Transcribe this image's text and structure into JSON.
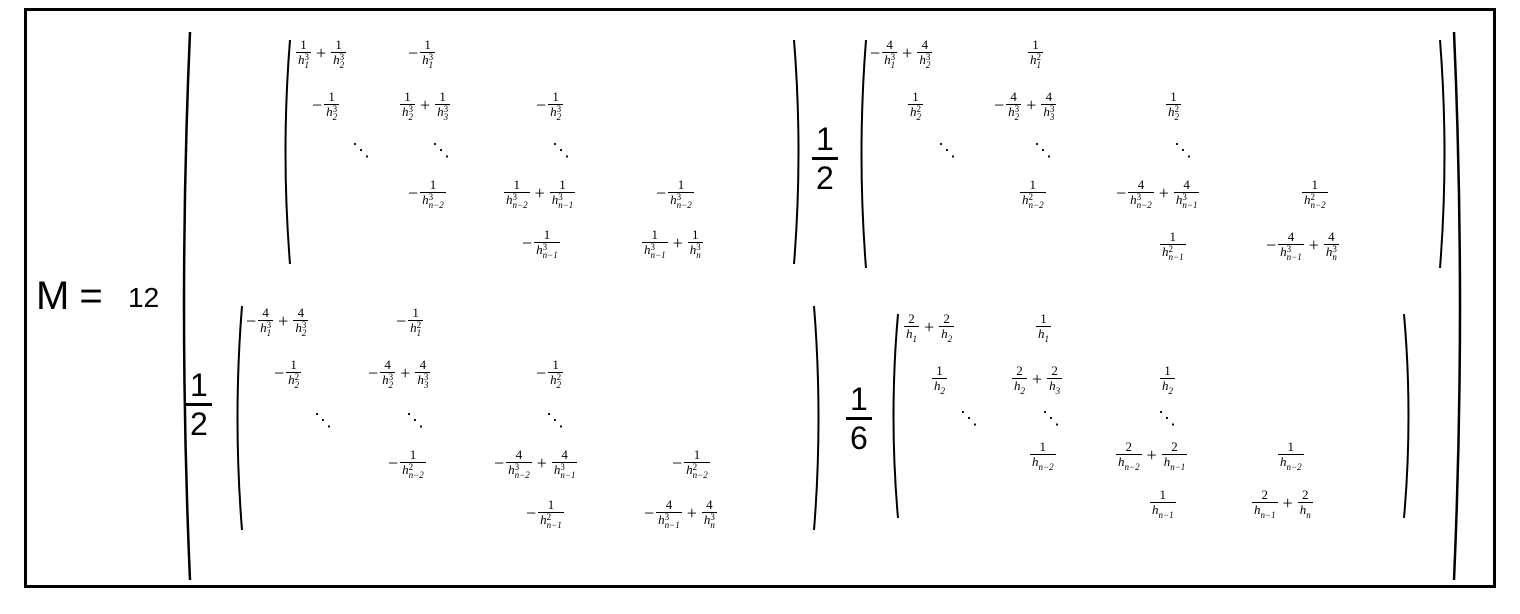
{
  "equation": {
    "lhs": "M",
    "equals": "=",
    "coefficient": "12"
  },
  "blocks": {
    "top_left": {
      "factor": null,
      "rows": [
        [
          {
            "expr": [
              {
                "n": "1",
                "d": "h",
                "sub": "1",
                "sup": "3"
              },
              "+",
              {
                "n": "1",
                "d": "h",
                "sub": "2",
                "sup": "3"
              }
            ]
          },
          {
            "expr": [
              "-",
              {
                "n": "1",
                "d": "h",
                "sub": "1",
                "sup": "3"
              }
            ]
          }
        ],
        [
          {
            "expr": [
              "-",
              {
                "n": "1",
                "d": "h",
                "sub": "2",
                "sup": "3"
              }
            ]
          },
          {
            "expr": [
              {
                "n": "1",
                "d": "h",
                "sub": "2",
                "sup": "3"
              },
              "+",
              {
                "n": "1",
                "d": "h",
                "sub": "3",
                "sup": "3"
              }
            ]
          },
          {
            "expr": [
              "-",
              {
                "n": "1",
                "d": "h",
                "sub": "2",
                "sup": "3"
              }
            ]
          }
        ],
        [
          "⋱",
          "⋱",
          "⋱"
        ],
        [
          {
            "expr": [
              "-",
              {
                "n": "1",
                "d": "h",
                "sub": "n−2",
                "sup": "3"
              }
            ]
          },
          {
            "expr": [
              {
                "n": "1",
                "d": "h",
                "sub": "n−2",
                "sup": "3"
              },
              "+",
              {
                "n": "1",
                "d": "h",
                "sub": "n−1",
                "sup": "3"
              }
            ]
          },
          {
            "expr": [
              "-",
              {
                "n": "1",
                "d": "h",
                "sub": "n−2",
                "sup": "3"
              }
            ]
          }
        ],
        [
          {
            "expr": [
              "-",
              {
                "n": "1",
                "d": "h",
                "sub": "n−1",
                "sup": "3"
              }
            ]
          },
          {
            "expr": [
              {
                "n": "1",
                "d": "h",
                "sub": "n−1",
                "sup": "3"
              },
              "+",
              {
                "n": "1",
                "d": "h",
                "sub": "n",
                "sup": "3"
              }
            ]
          }
        ]
      ]
    },
    "top_right": {
      "factor": {
        "num": "1",
        "den": "2"
      },
      "rows": [
        [
          {
            "expr": [
              "-",
              {
                "n": "4",
                "d": "h",
                "sub": "1",
                "sup": "3"
              },
              "+",
              {
                "n": "4",
                "d": "h",
                "sub": "2",
                "sup": "3"
              }
            ]
          },
          {
            "expr": [
              {
                "n": "1",
                "d": "h",
                "sub": "1",
                "sup": "2"
              }
            ]
          }
        ],
        [
          {
            "expr": [
              {
                "n": "1",
                "d": "h",
                "sub": "2",
                "sup": "2"
              }
            ]
          },
          {
            "expr": [
              "-",
              {
                "n": "4",
                "d": "h",
                "sub": "2",
                "sup": "3"
              },
              "+",
              {
                "n": "4",
                "d": "h",
                "sub": "3",
                "sup": "3"
              }
            ]
          },
          {
            "expr": [
              {
                "n": "1",
                "d": "h",
                "sub": "2",
                "sup": "2"
              }
            ]
          }
        ],
        [
          "⋱",
          "⋱",
          "⋱"
        ],
        [
          {
            "expr": [
              {
                "n": "1",
                "d": "h",
                "sub": "n−2",
                "sup": "2"
              }
            ]
          },
          {
            "expr": [
              "-",
              {
                "n": "4",
                "d": "h",
                "sub": "n−2",
                "sup": "3"
              },
              "+",
              {
                "n": "4",
                "d": "h",
                "sub": "n−1",
                "sup": "3"
              }
            ]
          },
          {
            "expr": [
              {
                "n": "1",
                "d": "h",
                "sub": "n−2",
                "sup": "2"
              }
            ]
          }
        ],
        [
          {
            "expr": [
              {
                "n": "1",
                "d": "h",
                "sub": "n−1",
                "sup": "2"
              }
            ]
          },
          {
            "expr": [
              "-",
              {
                "n": "4",
                "d": "h",
                "sub": "n−1",
                "sup": "3"
              },
              "+",
              {
                "n": "4",
                "d": "h",
                "sub": "n",
                "sup": "3"
              }
            ]
          }
        ]
      ]
    },
    "bottom_left": {
      "factor": {
        "num": "1",
        "den": "2"
      },
      "rows": [
        [
          {
            "expr": [
              "-",
              {
                "n": "4",
                "d": "h",
                "sub": "1",
                "sup": "3"
              },
              "+",
              {
                "n": "4",
                "d": "h",
                "sub": "2",
                "sup": "3"
              }
            ]
          },
          {
            "expr": [
              "-",
              {
                "n": "1",
                "d": "h",
                "sub": "1",
                "sup": "2"
              }
            ]
          }
        ],
        [
          {
            "expr": [
              "-",
              {
                "n": "1",
                "d": "h",
                "sub": "2",
                "sup": "2"
              }
            ]
          },
          {
            "expr": [
              "-",
              {
                "n": "4",
                "d": "h",
                "sub": "2",
                "sup": "3"
              },
              "+",
              {
                "n": "4",
                "d": "h",
                "sub": "3",
                "sup": "3"
              }
            ]
          },
          {
            "expr": [
              "-",
              {
                "n": "1",
                "d": "h",
                "sub": "2",
                "sup": "2"
              }
            ]
          }
        ],
        [
          "⋱",
          "⋱",
          "⋱"
        ],
        [
          {
            "expr": [
              "-",
              {
                "n": "1",
                "d": "h",
                "sub": "n−2",
                "sup": "2"
              }
            ]
          },
          {
            "expr": [
              "-",
              {
                "n": "4",
                "d": "h",
                "sub": "n−2",
                "sup": "3"
              },
              "+",
              {
                "n": "4",
                "d": "h",
                "sub": "n−1",
                "sup": "3"
              }
            ]
          },
          {
            "expr": [
              "-",
              {
                "n": "1",
                "d": "h",
                "sub": "n−2",
                "sup": "2"
              }
            ]
          }
        ],
        [
          {
            "expr": [
              "-",
              {
                "n": "1",
                "d": "h",
                "sub": "n−1",
                "sup": "2"
              }
            ]
          },
          {
            "expr": [
              "-",
              {
                "n": "4",
                "d": "h",
                "sub": "n−1",
                "sup": "3"
              },
              "+",
              {
                "n": "4",
                "d": "h",
                "sub": "n",
                "sup": "3"
              }
            ]
          }
        ]
      ]
    },
    "bottom_right": {
      "factor": {
        "num": "1",
        "den": "6"
      },
      "rows": [
        [
          {
            "expr": [
              {
                "n": "2",
                "d": "h",
                "sub": "1",
                "sup": ""
              },
              "+",
              {
                "n": "2",
                "d": "h",
                "sub": "2",
                "sup": ""
              }
            ]
          },
          {
            "expr": [
              {
                "n": "1",
                "d": "h",
                "sub": "1",
                "sup": ""
              }
            ]
          }
        ],
        [
          {
            "expr": [
              {
                "n": "1",
                "d": "h",
                "sub": "2",
                "sup": ""
              }
            ]
          },
          {
            "expr": [
              {
                "n": "2",
                "d": "h",
                "sub": "2",
                "sup": ""
              },
              "+",
              {
                "n": "2",
                "d": "h",
                "sub": "3",
                "sup": ""
              }
            ]
          },
          {
            "expr": [
              {
                "n": "1",
                "d": "h",
                "sub": "2",
                "sup": ""
              }
            ]
          }
        ],
        [
          "⋱",
          "⋱",
          "⋱"
        ],
        [
          {
            "expr": [
              {
                "n": "1",
                "d": "h",
                "sub": "n−2",
                "sup": ""
              }
            ]
          },
          {
            "expr": [
              {
                "n": "2",
                "d": "h",
                "sub": "n−2",
                "sup": ""
              },
              "+",
              {
                "n": "2",
                "d": "h",
                "sub": "n−1",
                "sup": ""
              }
            ]
          },
          {
            "expr": [
              {
                "n": "1",
                "d": "h",
                "sub": "n−2",
                "sup": ""
              }
            ]
          }
        ],
        [
          {
            "expr": [
              {
                "n": "1",
                "d": "h",
                "sub": "n−1",
                "sup": ""
              }
            ]
          },
          {
            "expr": [
              {
                "n": "2",
                "d": "h",
                "sub": "n−1",
                "sup": ""
              },
              "+",
              {
                "n": "2",
                "d": "h",
                "sub": "n",
                "sup": ""
              }
            ]
          }
        ]
      ]
    }
  }
}
